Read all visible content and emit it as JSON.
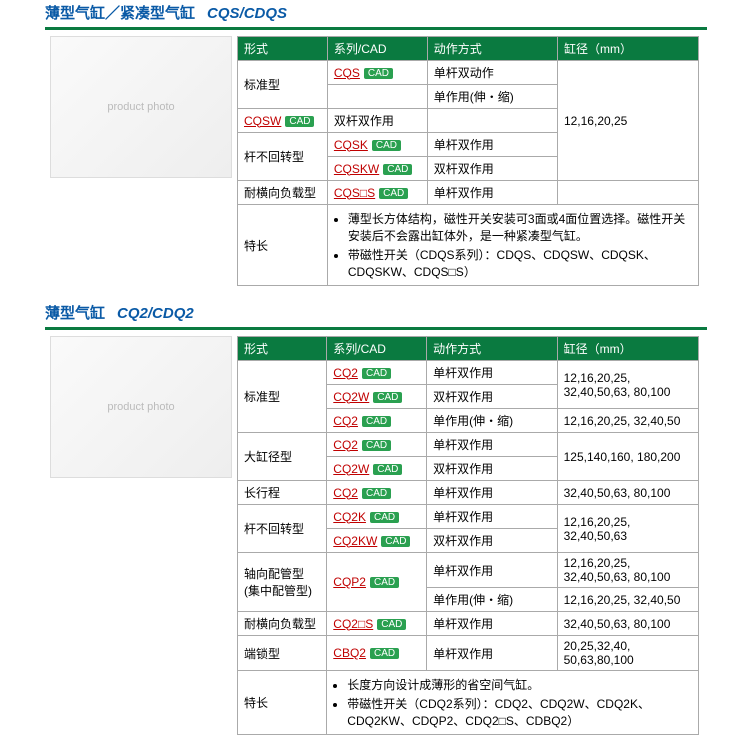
{
  "colors": {
    "brand_green": "#0a7a40",
    "brand_blue": "#0a5aa6",
    "link_red": "#c00000",
    "cad_green": "#2aa050",
    "border_gray": "#aaaaaa",
    "bg": "#ffffff",
    "text": "#000000"
  },
  "cad_label": "CAD",
  "headers": {
    "type": "形式",
    "series": "系列/CAD",
    "action": "动作方式",
    "bore": "缸径（mm）"
  },
  "sections": [
    {
      "title_cn": "薄型气缸／紧凑型气缸",
      "title_en": "CQS/CDQS",
      "image_alt": "product photo",
      "rows": [
        {
          "type": "标准型",
          "series": "CQS",
          "action": "单杆双动作",
          "type_rowspan": 2,
          "bore": "12,16,20,25",
          "bore_rowspan": 5
        },
        {
          "series": "",
          "action": "单作用(伸・缩)"
        },
        {
          "series": "CQSW",
          "action": "双杆双作用"
        },
        {
          "type": "杆不回转型",
          "series": "CQSK",
          "action": "单杆双作用",
          "type_rowspan": 2
        },
        {
          "series": "CQSKW",
          "action": "双杆双作用"
        },
        {
          "type": "耐横向负载型",
          "series": "CQS□S",
          "action": "单杆双作用",
          "bore": ""
        }
      ],
      "features_label": "特长",
      "features": [
        "薄型长方体结构，磁性开关安装可3面或4面位置选择。磁性开关安装后不会露出缸体外，是一种紧凑型气缸。",
        "带磁性开关（CDQS系列）：CDQS、CDQSW、CDQSK、CDQSKW、CDQS□S）"
      ]
    },
    {
      "title_cn": "薄型气缸",
      "title_en": "CQ2/CDQ2",
      "image_alt": "product photo",
      "rows": [
        {
          "type": "标准型",
          "type_rowspan": 3,
          "series": "CQ2",
          "action": "单杆双作用",
          "bore": "12,16,20,25, 32,40,50,63, 80,100",
          "bore_rowspan": 2
        },
        {
          "series": "CQ2W",
          "action": "双杆双作用"
        },
        {
          "series": "CQ2",
          "action": "单作用(伸・缩)",
          "bore": "12,16,20,25, 32,40,50"
        },
        {
          "type": "大缸径型",
          "type_rowspan": 2,
          "series": "CQ2",
          "action": "单杆双作用",
          "bore": "125,140,160, 180,200",
          "bore_rowspan": 2
        },
        {
          "series": "CQ2W",
          "action": "双杆双作用"
        },
        {
          "type": "长行程",
          "series": "CQ2",
          "action": "单杆双作用",
          "bore": "32,40,50,63, 80,100"
        },
        {
          "type": "杆不回转型",
          "type_rowspan": 2,
          "series": "CQ2K",
          "action": "单杆双作用",
          "bore": "12,16,20,25, 32,40,50,63",
          "bore_rowspan": 2
        },
        {
          "series": "CQ2KW",
          "action": "双杆双作用"
        },
        {
          "type": "轴向配管型 (集中配管型)",
          "type_rowspan": 2,
          "series": "CQP2",
          "action": "单杆双作用",
          "series_rowspan": 2,
          "bore": "12,16,20,25, 32,40,50,63, 80,100"
        },
        {
          "action": "单作用(伸・缩)",
          "bore": "12,16,20,25, 32,40,50"
        },
        {
          "type": "耐横向负载型",
          "series": "CQ2□S",
          "action": "单杆双作用",
          "bore": "32,40,50,63, 80,100"
        },
        {
          "type": "端锁型",
          "series": "CBQ2",
          "action": "单杆双作用",
          "bore": "20,25,32,40, 50,63,80,100"
        }
      ],
      "features_label": "特长",
      "features": [
        "长度方向设计成薄形的省空间气缸。",
        "带磁性开关（CDQ2系列）：CDQ2、CDQ2W、CDQ2K、CDQ2KW、CDQP2、CDQ2□S、CDBQ2）"
      ]
    }
  ]
}
